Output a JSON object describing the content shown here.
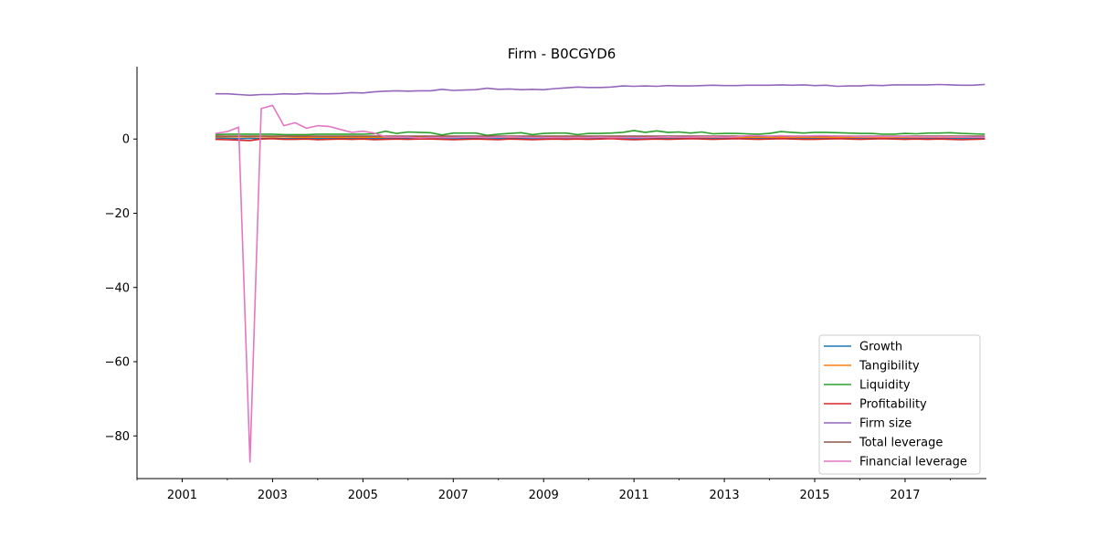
{
  "chart_data": {
    "type": "line",
    "title": "Firm - B0CGYD6",
    "xlabel": "",
    "ylabel": "",
    "xlim": [
      2000.0,
      2018.8
    ],
    "ylim": [
      -91.5,
      19.5
    ],
    "x_ticks": [
      2001,
      2003,
      2005,
      2007,
      2009,
      2011,
      2013,
      2015,
      2017
    ],
    "x_minor_ticks": [
      2000,
      2002,
      2004,
      2006,
      2008,
      2010,
      2012,
      2014,
      2016,
      2018
    ],
    "y_ticks": [
      0,
      -20,
      -40,
      -60,
      -80
    ],
    "y_tick_labels": [
      "0",
      "−20",
      "−40",
      "−60",
      "−80"
    ],
    "grid": false,
    "legend_position": "lower-right",
    "x": [
      2001.75,
      2002.0,
      2002.25,
      2002.5,
      2002.75,
      2003.0,
      2003.25,
      2003.5,
      2003.75,
      2004.0,
      2004.25,
      2004.5,
      2004.75,
      2005.0,
      2005.25,
      2005.5,
      2005.75,
      2006.0,
      2006.25,
      2006.5,
      2006.75,
      2007.0,
      2007.25,
      2007.5,
      2007.75,
      2008.0,
      2008.25,
      2008.5,
      2008.75,
      2009.0,
      2009.25,
      2009.5,
      2009.75,
      2010.0,
      2010.25,
      2010.5,
      2010.75,
      2011.0,
      2011.25,
      2011.5,
      2011.75,
      2012.0,
      2012.25,
      2012.5,
      2012.75,
      2013.0,
      2013.25,
      2013.5,
      2013.75,
      2014.0,
      2014.25,
      2014.5,
      2014.75,
      2015.0,
      2015.25,
      2015.5,
      2015.75,
      2016.0,
      2016.25,
      2016.5,
      2016.75,
      2017.0,
      2017.25,
      2017.5,
      2017.75,
      2018.0,
      2018.25,
      2018.5,
      2018.75
    ],
    "series": [
      {
        "name": "Growth",
        "color": "#1f77b4",
        "values": [
          0.3,
          0.2,
          0.1,
          0.2,
          0.1,
          0.2,
          0.1,
          0.1,
          0.2,
          0.1,
          0.1,
          0.2,
          0.1,
          0.2,
          0.1,
          0.1,
          0.2,
          0.1,
          0.1,
          0.1,
          0.2,
          0.1,
          0.1,
          0.2,
          0.1,
          0.1,
          0.2,
          0.1,
          0.1,
          0.1,
          0.2,
          0.1,
          0.1,
          0.1,
          0.1,
          0.2,
          0.1,
          0.1,
          0.1,
          0.2,
          0.1,
          0.1,
          0.1,
          0.2,
          0.1,
          0.1,
          0.1,
          0.2,
          0.1,
          0.1,
          0.1,
          0.2,
          0.1,
          0.1,
          0.1,
          0.1,
          0.2,
          0.1,
          0.1,
          0.1,
          0.1,
          0.2,
          0.1,
          0.1,
          0.1,
          0.1,
          0.2,
          0.1,
          0.1
        ]
      },
      {
        "name": "Tangibility",
        "color": "#ff7f0e",
        "values": [
          0.6,
          0.6,
          0.6,
          0.6,
          0.6,
          0.6,
          0.6,
          0.5,
          0.5,
          0.5,
          0.5,
          0.5,
          0.5,
          0.5,
          0.5,
          0.5,
          0.5,
          0.5,
          0.5,
          0.5,
          0.5,
          0.5,
          0.5,
          0.5,
          0.5,
          0.5,
          0.5,
          0.5,
          0.5,
          0.5,
          0.5,
          0.5,
          0.5,
          0.5,
          0.5,
          0.5,
          0.5,
          0.5,
          0.5,
          0.5,
          0.5,
          0.5,
          0.5,
          0.5,
          0.5,
          0.5,
          0.5,
          0.5,
          0.5,
          0.5,
          0.5,
          0.5,
          0.5,
          0.5,
          0.5,
          0.5,
          0.5,
          0.5,
          0.5,
          0.5,
          0.5,
          0.5,
          0.5,
          0.5,
          0.5,
          0.5,
          0.5,
          0.5,
          0.5
        ]
      },
      {
        "name": "Liquidity",
        "color": "#2ca02c",
        "values": [
          1.2,
          1.3,
          1.3,
          1.3,
          1.3,
          1.3,
          1.2,
          1.2,
          1.2,
          1.3,
          1.3,
          1.3,
          1.3,
          1.3,
          1.4,
          2.1,
          1.5,
          1.9,
          1.8,
          1.7,
          1.1,
          1.6,
          1.6,
          1.6,
          1.0,
          1.3,
          1.5,
          1.7,
          1.2,
          1.5,
          1.6,
          1.6,
          1.2,
          1.5,
          1.5,
          1.6,
          1.8,
          2.3,
          1.8,
          2.2,
          1.8,
          1.9,
          1.6,
          1.9,
          1.4,
          1.5,
          1.5,
          1.4,
          1.3,
          1.5,
          2.0,
          1.8,
          1.6,
          1.8,
          1.8,
          1.7,
          1.6,
          1.5,
          1.5,
          1.3,
          1.3,
          1.5,
          1.4,
          1.6,
          1.6,
          1.7,
          1.5,
          1.4,
          1.3
        ]
      },
      {
        "name": "Profitability",
        "color": "#d62728",
        "values": [
          -0.1,
          -0.2,
          -0.3,
          -0.4,
          0.0,
          0.1,
          -0.1,
          -0.1,
          0.0,
          -0.2,
          -0.1,
          0.0,
          -0.1,
          0.0,
          -0.2,
          -0.1,
          0.0,
          -0.1,
          0.0,
          0.0,
          -0.1,
          -0.2,
          -0.1,
          0.0,
          -0.1,
          -0.2,
          0.0,
          -0.1,
          -0.2,
          -0.1,
          0.0,
          -0.1,
          0.0,
          -0.1,
          0.0,
          0.1,
          -0.1,
          -0.2,
          -0.1,
          0.0,
          -0.1,
          0.0,
          0.1,
          0.0,
          -0.1,
          0.0,
          0.1,
          0.0,
          -0.1,
          0.0,
          0.1,
          0.0,
          -0.1,
          -0.1,
          0.0,
          0.1,
          0.0,
          -0.1,
          0.0,
          0.1,
          0.0,
          -0.1,
          0.0,
          -0.1,
          0.0,
          -0.1,
          -0.2,
          -0.1,
          0.0
        ]
      },
      {
        "name": "Firm size",
        "color": "#9467bd",
        "values": [
          12.2,
          12.2,
          12.0,
          11.8,
          12.0,
          12.0,
          12.2,
          12.1,
          12.3,
          12.2,
          12.2,
          12.3,
          12.5,
          12.4,
          12.7,
          12.9,
          13.0,
          12.9,
          13.0,
          13.0,
          13.4,
          13.1,
          13.2,
          13.3,
          13.7,
          13.4,
          13.5,
          13.3,
          13.4,
          13.3,
          13.6,
          13.8,
          14.0,
          13.9,
          13.9,
          14.0,
          14.3,
          14.2,
          14.3,
          14.2,
          14.4,
          14.3,
          14.3,
          14.4,
          14.5,
          14.4,
          14.4,
          14.5,
          14.5,
          14.5,
          14.6,
          14.5,
          14.6,
          14.4,
          14.5,
          14.2,
          14.3,
          14.3,
          14.5,
          14.4,
          14.6,
          14.6,
          14.6,
          14.6,
          14.7,
          14.6,
          14.5,
          14.5,
          14.7
        ]
      },
      {
        "name": "Total leverage",
        "color": "#8c564b",
        "values": [
          0.8,
          0.8,
          0.8,
          0.8,
          0.8,
          0.8,
          0.8,
          0.8,
          0.8,
          0.8,
          0.8,
          0.8,
          0.8,
          0.8,
          0.8,
          0.8,
          0.8,
          0.8,
          0.8,
          0.8,
          0.8,
          0.8,
          0.8,
          0.8,
          0.8,
          0.8,
          0.8,
          0.8,
          0.8,
          0.8,
          0.8,
          0.8,
          0.8,
          0.8,
          0.8,
          0.8,
          0.8,
          0.8,
          0.8,
          0.8,
          0.8,
          0.8,
          0.8,
          0.8,
          0.8,
          0.8,
          0.8,
          0.8,
          0.8,
          0.8,
          0.8,
          0.8,
          0.8,
          0.8,
          0.8,
          0.8,
          0.8,
          0.8,
          0.8,
          0.8,
          0.8,
          0.8,
          0.8,
          0.8,
          0.8,
          0.8,
          0.8,
          0.8,
          0.8
        ]
      },
      {
        "name": "Financial leverage",
        "color": "#e377c2",
        "values": [
          1.5,
          2.0,
          3.2,
          -87.0,
          8.2,
          9.1,
          3.6,
          4.4,
          2.9,
          3.6,
          3.4,
          2.6,
          1.8,
          2.1,
          1.6,
          0.6,
          0.5,
          0.5,
          0.3,
          0.4,
          0.4,
          0.4,
          0.5,
          0.5,
          0.4,
          0.5,
          0.6,
          0.5,
          0.4,
          0.4,
          0.4,
          0.4,
          0.4,
          0.4,
          0.5,
          0.4,
          0.4,
          0.4,
          0.4,
          0.5,
          0.6,
          0.5,
          0.5,
          0.6,
          0.6,
          0.5,
          0.6,
          0.9,
          0.9,
          0.8,
          0.9,
          0.8,
          0.8,
          0.9,
          0.9,
          0.8,
          0.8,
          0.7,
          0.7,
          0.7,
          0.7,
          0.7,
          0.6,
          0.6,
          0.6,
          0.6,
          0.6,
          0.5,
          0.5
        ]
      }
    ]
  }
}
